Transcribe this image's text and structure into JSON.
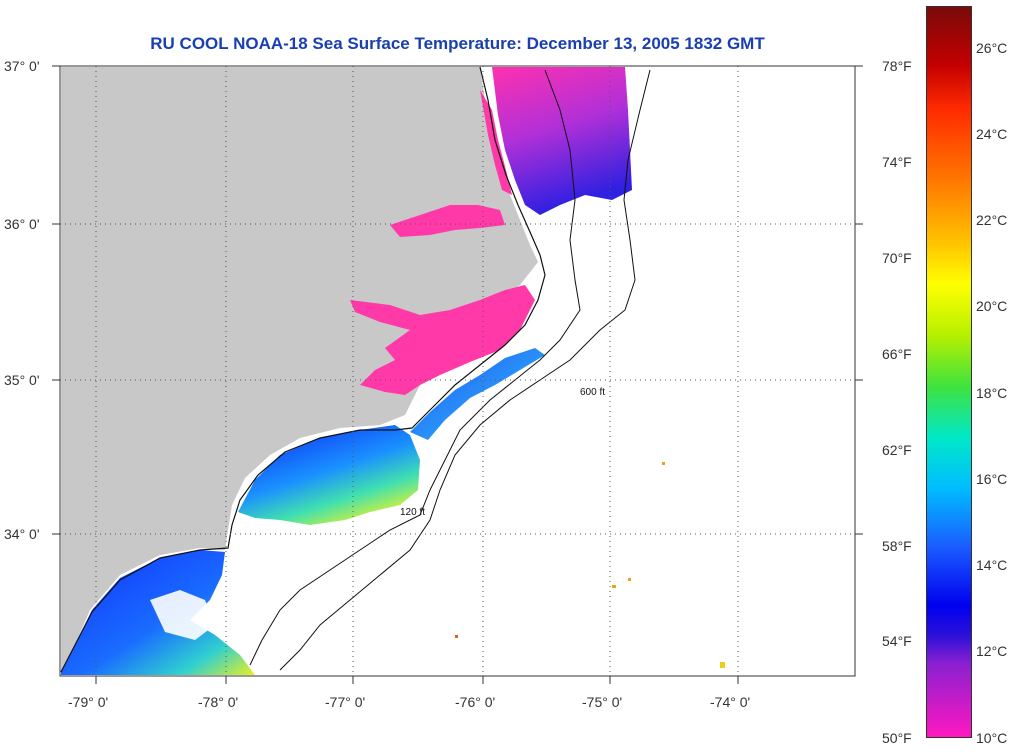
{
  "title": "RU COOL  NOAA-18  Sea Surface Temperature:  December 13, 2005 1832 GMT",
  "map": {
    "lat_labels": [
      "37° 0'",
      "36° 0'",
      "35° 0'",
      "34° 0'"
    ],
    "lon_labels": [
      "-79° 0'",
      "-78° 0'",
      "-77° 0'",
      "-76° 0'",
      "-75° 0'",
      "-74° 0'"
    ],
    "contour_labels": [
      "120 ft",
      "600 ft"
    ],
    "colors": {
      "land": "#c8c8c8",
      "cold": "#ff2aa0",
      "cool": "#1a3cff",
      "warm": "#ffe000"
    }
  },
  "colorbar": {
    "fahrenheit": [
      "78°F",
      "74°F",
      "70°F",
      "66°F",
      "62°F",
      "58°F",
      "54°F",
      "50°F"
    ],
    "celsius": [
      "26°C",
      "24°C",
      "22°C",
      "20°C",
      "18°C",
      "16°C",
      "14°C",
      "12°C",
      "10°C"
    ]
  }
}
